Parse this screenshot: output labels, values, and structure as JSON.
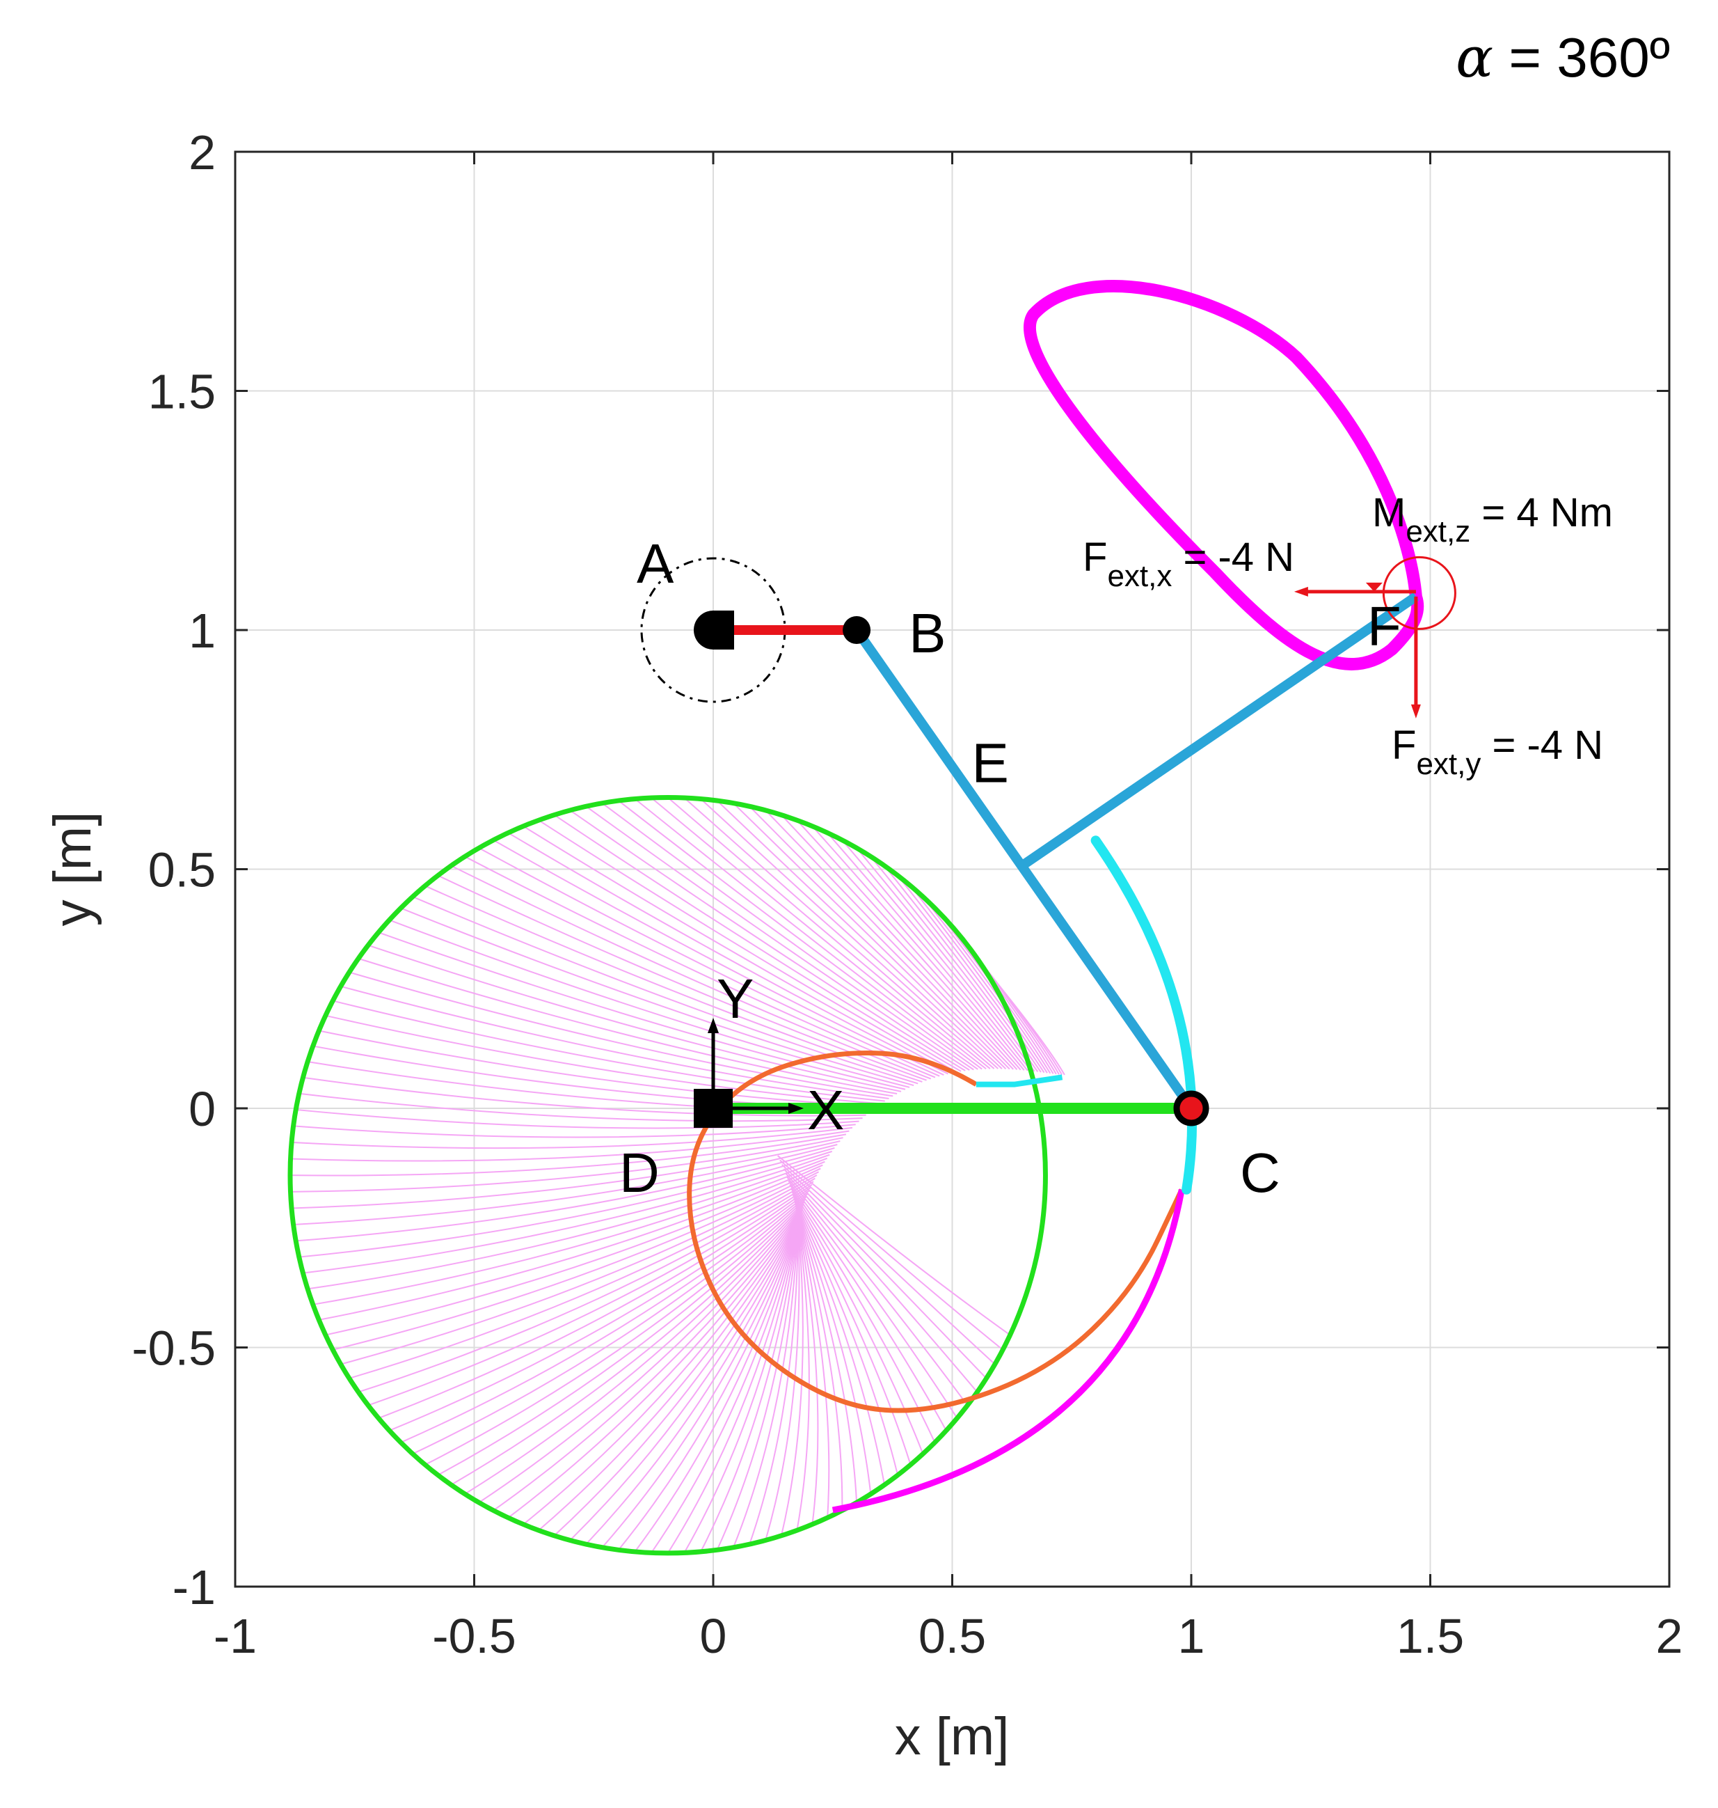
{
  "title": {
    "greek": "α",
    "rest": " = 360º"
  },
  "chart_data": {
    "type": "mechanism-diagram",
    "xlabel": "x [m]",
    "ylabel": "y [m]",
    "xlim": [
      -1,
      2
    ],
    "ylim": [
      -1,
      2
    ],
    "grid": true,
    "xticks": [
      -1,
      -0.5,
      0,
      0.5,
      1,
      1.5,
      2
    ],
    "yticks": [
      -1,
      -0.5,
      0,
      0.5,
      1,
      1.5,
      2
    ],
    "xtick_labels": [
      "-1",
      "-0.5",
      "0",
      "0.5",
      "1",
      "1.5",
      "2"
    ],
    "ytick_labels": [
      "-1",
      "-0.5",
      "0",
      "0.5",
      "1",
      "1.5",
      "2"
    ],
    "points": [
      {
        "name": "A",
        "x": 0.0,
        "y": 1.0
      },
      {
        "name": "B",
        "x": 0.3,
        "y": 1.0
      },
      {
        "name": "C",
        "x": 1.0,
        "y": 0.0
      },
      {
        "name": "D",
        "x": 0.0,
        "y": 0.0
      },
      {
        "name": "E",
        "x": 0.65,
        "y": 0.51
      },
      {
        "name": "F",
        "x": 1.47,
        "y": 1.07
      }
    ],
    "links": [
      {
        "name": "crank AB",
        "from": [
          0.0,
          1.0
        ],
        "to": [
          0.3,
          1.0
        ],
        "color": "#e8141b"
      },
      {
        "name": "coupler BC",
        "from": [
          0.3,
          1.0
        ],
        "to": [
          1.0,
          0.0
        ],
        "color": "#2aa5d8"
      },
      {
        "name": "coupler EF",
        "from": [
          0.65,
          0.51
        ],
        "to": [
          1.47,
          1.07
        ],
        "color": "#2aa5d8"
      },
      {
        "name": "ground DC",
        "from": [
          0.0,
          0.0
        ],
        "to": [
          1.0,
          0.0
        ],
        "color": "#21e01c"
      }
    ],
    "frame_labels": {
      "x": "X",
      "y": "Y"
    },
    "external_loads": {
      "fx": {
        "label_main": "F",
        "label_sub": "ext,x",
        "value": " = -4 N",
        "N": -4
      },
      "fy": {
        "label_main": "F",
        "label_sub": "ext,y",
        "value": " = -4 N",
        "N": -4
      },
      "mz": {
        "label_main": "M",
        "label_sub": "ext,z",
        "value": " = 4 Nm",
        "Nm": 4
      }
    },
    "envelope": {
      "name": "green circle",
      "center": [
        -0.095,
        -0.14
      ],
      "radius": 0.79
    },
    "colors": {
      "coupler_curve": "#ff00ff",
      "hatch": "#f5a6f5",
      "orange_curve": "#f26a2f",
      "cyan_curve": "#22e6f0",
      "grid": "#dcdcdc"
    }
  }
}
